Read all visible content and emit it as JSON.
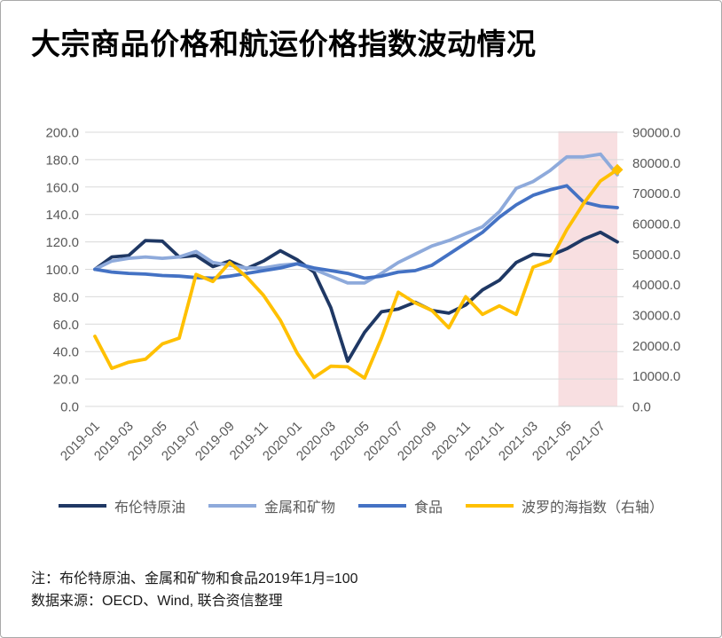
{
  "title": "大宗商品价格和航运价格指数波动情况",
  "notes": [
    "注：布伦特原油、金属和矿物和食品2019年1月=100",
    "数据来源：OECD、Wind, 联合资信整理"
  ],
  "chart_data": {
    "type": "line",
    "title": "大宗商品价格和航运价格指数波动情况",
    "grid": true,
    "legend_position": "bottom",
    "months": [
      "2019-01",
      "2019-02",
      "2019-03",
      "2019-04",
      "2019-05",
      "2019-06",
      "2019-07",
      "2019-08",
      "2019-09",
      "2019-10",
      "2019-11",
      "2019-12",
      "2020-01",
      "2020-02",
      "2020-03",
      "2020-04",
      "2020-05",
      "2020-06",
      "2020-07",
      "2020-08",
      "2020-09",
      "2020-10",
      "2020-11",
      "2020-12",
      "2021-01",
      "2021-02",
      "2021-03",
      "2021-04",
      "2021-05",
      "2021-06",
      "2021-07",
      "2021-08"
    ],
    "x_tick_labels": [
      "2019-01",
      "2019-03",
      "2019-05",
      "2019-07",
      "2019-09",
      "2019-11",
      "2020-01",
      "2020-03",
      "2020-05",
      "2020-07",
      "2020-09",
      "2020-11",
      "2021-01",
      "2021-03",
      "2021-05",
      "2021-07"
    ],
    "left_axis": {
      "min": 0,
      "max": 200,
      "step": 20,
      "tick_labels": [
        "0.0",
        "20.0",
        "40.0",
        "60.0",
        "80.0",
        "100.0",
        "120.0",
        "140.0",
        "160.0",
        "180.0",
        "200.0"
      ]
    },
    "right_axis": {
      "min": 0,
      "max": 90000,
      "step": 10000,
      "tick_labels": [
        "0.0",
        "10000.0",
        "20000.0",
        "30000.0",
        "40000.0",
        "50000.0",
        "60000.0",
        "70000.0",
        "80000.0",
        "90000.0"
      ]
    },
    "highlight_band": {
      "from_month": "2021-05",
      "to_month": "2021-08",
      "color": "#F1C0C3",
      "opacity": 0.5
    },
    "series": [
      {
        "id": "brent",
        "name": "布伦特原油",
        "axis": "left",
        "color": "#1F3864",
        "values": [
          100,
          109,
          110,
          121,
          120.5,
          109,
          110,
          102,
          106,
          100.5,
          106,
          113.5,
          107,
          98,
          72,
          33,
          54,
          69,
          71,
          76,
          70,
          68,
          74,
          85,
          92,
          105,
          111,
          110,
          115,
          122,
          127,
          120
        ]
      },
      {
        "id": "metals",
        "name": "金属和矿物",
        "axis": "left",
        "color": "#8EAADB",
        "values": [
          100,
          106,
          108,
          109,
          108,
          109,
          113,
          105,
          103,
          101,
          101,
          103,
          104,
          100,
          95,
          90,
          90,
          97,
          105,
          111,
          117,
          121,
          126,
          131,
          142,
          159,
          164,
          172,
          182,
          182,
          184,
          169
        ]
      },
      {
        "id": "food",
        "name": "食品",
        "axis": "left",
        "color": "#4472C4",
        "values": [
          100,
          98,
          97,
          96.5,
          95.5,
          95,
          94,
          93.5,
          95,
          97,
          99,
          101,
          104,
          101,
          99,
          97,
          93.5,
          95,
          98,
          99,
          103,
          111,
          119,
          127,
          138,
          147,
          154,
          158,
          161,
          149,
          146,
          145
        ]
      },
      {
        "id": "baltic",
        "name": "波罗的海指数（右轴）",
        "axis": "right",
        "color": "#FFC000",
        "end_marker": "diamond",
        "values": [
          23000,
          12500,
          14500,
          15500,
          20500,
          22400,
          43300,
          41000,
          47200,
          42500,
          36500,
          28300,
          17500,
          9500,
          13200,
          13000,
          9300,
          22400,
          37500,
          34000,
          31500,
          25800,
          36000,
          30200,
          33000,
          30200,
          45700,
          47700,
          58000,
          66600,
          74000,
          77700
        ]
      }
    ]
  }
}
